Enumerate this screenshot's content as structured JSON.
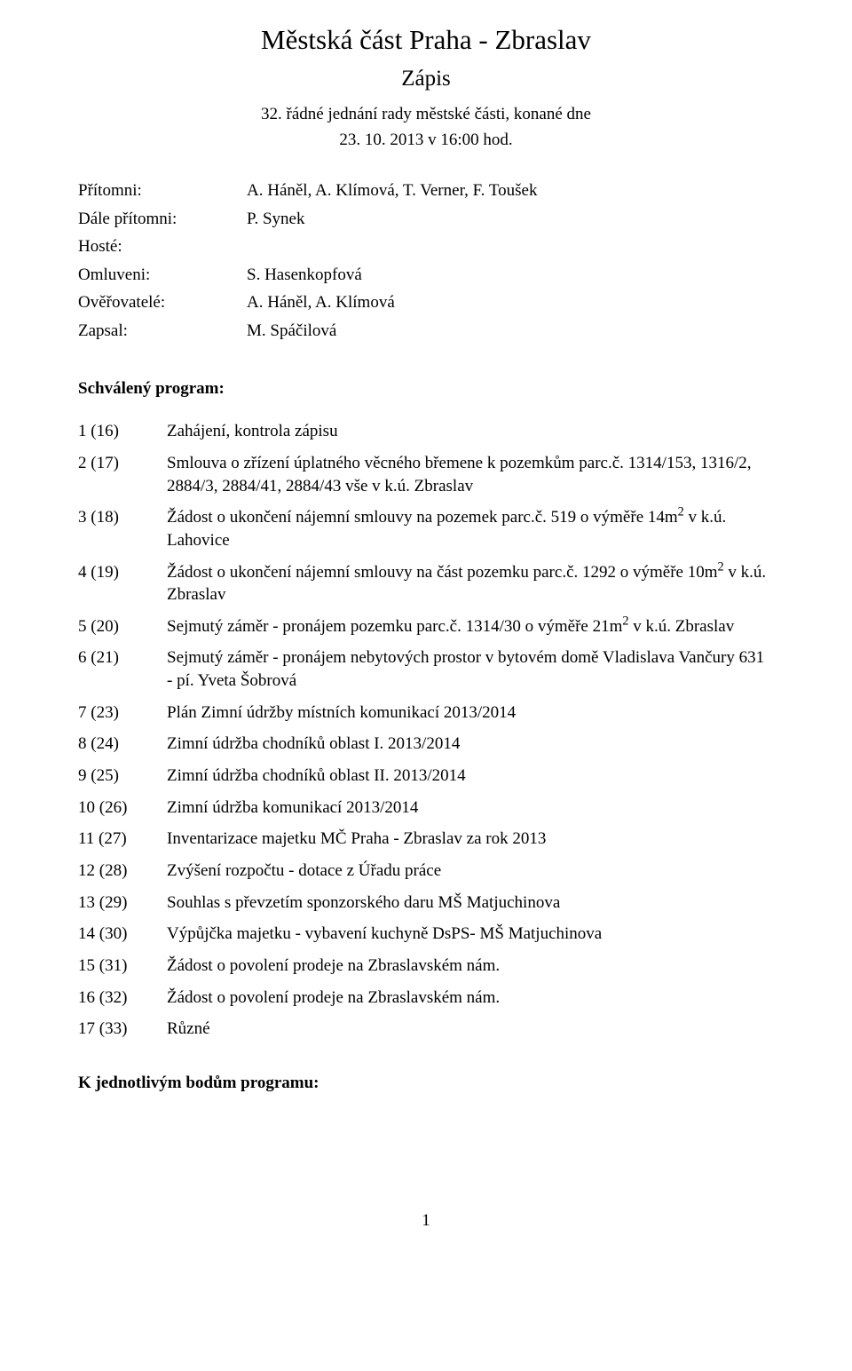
{
  "header": {
    "title": "Městská část Praha - Zbraslav",
    "subtitle": "Zápis",
    "meeting_line": "32. řádné jednání rady městské části, konané dne",
    "meeting_date": "23. 10. 2013 v 16:00 hod."
  },
  "meta": {
    "rows": [
      {
        "label": "Přítomni:",
        "value": "A. Háněl, A. Klímová, T. Verner, F. Toušek"
      },
      {
        "label": "Dále přítomni:",
        "value": "P. Synek"
      },
      {
        "label": "Hosté:",
        "value": ""
      },
      {
        "label": "Omluveni:",
        "value": "S. Hasenkopfová"
      },
      {
        "label": "Ověřovatelé:",
        "value": "A. Háněl, A. Klímová"
      },
      {
        "label": "Zapsal:",
        "value": "M. Spáčilová"
      }
    ]
  },
  "program_heading": "Schválený program:",
  "agenda": [
    {
      "num": "1 (16)",
      "text": "Zahájení, kontrola zápisu"
    },
    {
      "num": "2 (17)",
      "text": "Smlouva o zřízení úplatného věcného břemene k pozemkům parc.č. 1314/153, 1316/2, 2884/3, 2884/41, 2884/43 vše v k.ú. Zbraslav"
    },
    {
      "num": "3 (18)",
      "text_pre": "Žádost o ukončení nájemní smlouvy na pozemek parc.č. 519 o výměře 14m",
      "sup": "2",
      "text_post": " v k.ú. Lahovice"
    },
    {
      "num": "4 (19)",
      "text_pre": "Žádost o ukončení nájemní smlouvy na část pozemku parc.č. 1292 o výměře 10m",
      "sup": "2",
      "text_post": " v k.ú. Zbraslav"
    },
    {
      "num": "5 (20)",
      "text_pre": "Sejmutý záměr - pronájem pozemku parc.č. 1314/30 o výměře 21m",
      "sup": "2",
      "text_post": " v k.ú. Zbraslav"
    },
    {
      "num": "6 (21)",
      "text": "Sejmutý záměr - pronájem nebytových prostor v bytovém domě Vladislava Vančury 631 - pí. Yveta Šobrová"
    },
    {
      "num": "7 (23)",
      "text": "Plán Zimní údržby místních komunikací 2013/2014"
    },
    {
      "num": "8 (24)",
      "text": "Zimní údržba chodníků oblast I. 2013/2014"
    },
    {
      "num": "9 (25)",
      "text": "Zimní údržba chodníků oblast II. 2013/2014"
    },
    {
      "num": "10 (26)",
      "text": "Zimní údržba komunikací 2013/2014"
    },
    {
      "num": "11 (27)",
      "text": "Inventarizace majetku MČ Praha - Zbraslav za rok 2013"
    },
    {
      "num": "12 (28)",
      "text": "Zvýšení rozpočtu - dotace z Úřadu práce"
    },
    {
      "num": "13 (29)",
      "text": "Souhlas s převzetím sponzorského daru MŠ Matjuchinova"
    },
    {
      "num": "14 (30)",
      "text": "Výpůjčka majetku - vybavení kuchyně DsPS- MŠ Matjuchinova"
    },
    {
      "num": "15 (31)",
      "text": "Žádost o povolení prodeje na Zbraslavském nám."
    },
    {
      "num": "16 (32)",
      "text": "Žádost o povolení prodeje na Zbraslavském nám."
    },
    {
      "num": "17 (33)",
      "text": "Různé"
    }
  ],
  "footer_heading": "K jednotlivým bodům programu:",
  "page_number": "1"
}
